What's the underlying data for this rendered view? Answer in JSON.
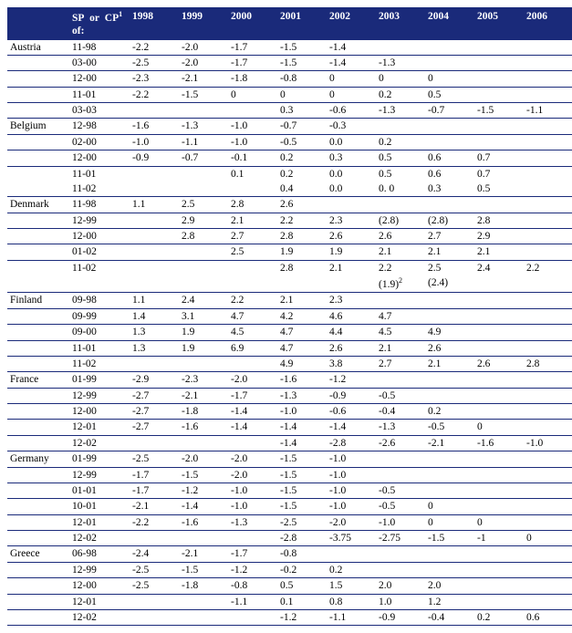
{
  "header": {
    "blank": "",
    "sp_label_pre": "SP  or  CP",
    "sp_sup": "1",
    "sp_label_post": " of:",
    "years": [
      "1998",
      "1999",
      "2000",
      "2001",
      "2002",
      "2003",
      "2004",
      "2005",
      "2006"
    ]
  },
  "rows": [
    {
      "country": "Austria",
      "sp": "11-98",
      "v": [
        "-2.2",
        "-2.0",
        "-1.7",
        "-1.5",
        "-1.4",
        "",
        "",
        "",
        ""
      ]
    },
    {
      "country": "",
      "sp": "03-00",
      "v": [
        "-2.5",
        "-2.0",
        "-1.7",
        "-1.5",
        "-1.4",
        "-1.3",
        "",
        "",
        ""
      ]
    },
    {
      "country": "",
      "sp": "12-00",
      "v": [
        "-2.3",
        "-2.1",
        "-1.8",
        "-0.8",
        "0",
        "0",
        "0",
        "",
        ""
      ]
    },
    {
      "country": "",
      "sp": "11-01",
      "v": [
        "-2.2",
        "-1.5",
        "0",
        "0",
        "0",
        "0.2",
        "0.5",
        "",
        ""
      ]
    },
    {
      "country": "",
      "sp": "03-03",
      "v": [
        "",
        "",
        "",
        "0.3",
        "-0.6",
        "-1.3",
        "-0.7",
        "-1.5",
        "-1.1"
      ]
    },
    {
      "country": "Belgium",
      "sp": "12-98",
      "v": [
        "-1.6",
        "-1.3",
        "-1.0",
        "-0.7",
        "-0.3",
        "",
        "",
        "",
        ""
      ]
    },
    {
      "country": "",
      "sp": "02-00",
      "v": [
        "-1.0",
        "-1.1",
        "-1.0",
        "-0.5",
        "0.0",
        "0.2",
        "",
        "",
        ""
      ]
    },
    {
      "country": "",
      "sp": "12-00",
      "v": [
        "-0.9",
        "-0.7",
        "-0.1",
        "0.2",
        "0.3",
        "0.5",
        "0.6",
        "0.7",
        ""
      ]
    },
    {
      "split": true,
      "top": {
        "country": "",
        "sp": "11-01",
        "v": [
          "",
          "",
          "0.1",
          "0.2",
          "0.0",
          "0.5",
          "0.6",
          "0.7",
          ""
        ]
      },
      "bot": {
        "country": "",
        "sp": "11-02",
        "v": [
          "",
          "",
          "",
          "0.4",
          "0.0",
          "0. 0",
          "0.3",
          "0.5",
          ""
        ]
      }
    },
    {
      "country": "Denmark",
      "sp": "11-98",
      "v": [
        "1.1",
        "2.5",
        "2.8",
        "2.6",
        "",
        "",
        "",
        "",
        ""
      ]
    },
    {
      "country": "",
      "sp": "12-99",
      "v": [
        "",
        "2.9",
        "2.1",
        "2.2",
        "2.3",
        "(2.8)",
        "(2.8)",
        "2.8",
        ""
      ]
    },
    {
      "country": "",
      "sp": "12-00",
      "v": [
        "",
        "2.8",
        "2.7",
        "2.8",
        "2.6",
        "2.6",
        "2.7",
        "2.9",
        ""
      ]
    },
    {
      "country": "",
      "sp": "01-02",
      "v": [
        "",
        "",
        "2.5",
        "1.9",
        "1.9",
        "2.1",
        "2.1",
        "2.1",
        ""
      ]
    },
    {
      "split": true,
      "top": {
        "country": "",
        "sp": "11-02",
        "v": [
          "",
          "",
          "",
          "2.8",
          "2.1",
          "2.2",
          "2.5",
          "2.4",
          "2.2"
        ]
      },
      "bot": {
        "country": "",
        "sp": "",
        "v": [
          "",
          "",
          "",
          "",
          "",
          "(1.9)",
          "(2.4)",
          "",
          ""
        ],
        "sup": {
          "5": "2"
        }
      }
    },
    {
      "country": "Finland",
      "sp": "09-98",
      "v": [
        "1.1",
        "2.4",
        "2.2",
        "2.1",
        "2.3",
        "",
        "",
        "",
        ""
      ]
    },
    {
      "country": "",
      "sp": "09-99",
      "v": [
        "1.4",
        "3.1",
        "4.7",
        "4.2",
        "4.6",
        "4.7",
        "",
        "",
        ""
      ]
    },
    {
      "country": "",
      "sp": "09-00",
      "v": [
        "1.3",
        "1.9",
        "4.5",
        "4.7",
        "4.4",
        "4.5",
        "4.9",
        "",
        ""
      ]
    },
    {
      "country": "",
      "sp": "11-01",
      "v": [
        "1.3",
        "1.9",
        "6.9",
        "4.7",
        "2.6",
        "2.1",
        "2.6",
        "",
        ""
      ]
    },
    {
      "country": "",
      "sp": "11-02",
      "v": [
        "",
        "",
        "",
        "4.9",
        "3.8",
        "2.7",
        "2.1",
        "2.6",
        "2.8"
      ]
    },
    {
      "country": "France",
      "sp": "01-99",
      "v": [
        "-2.9",
        "-2.3",
        "-2.0",
        "-1.6",
        "-1.2",
        "",
        "",
        "",
        ""
      ]
    },
    {
      "country": "",
      "sp": "12-99",
      "v": [
        "-2.7",
        "-2.1",
        "-1.7",
        "-1.3",
        "-0.9",
        "-0.5",
        "",
        "",
        ""
      ]
    },
    {
      "country": "",
      "sp": "12-00",
      "v": [
        "-2.7",
        "-1.8",
        "-1.4",
        "-1.0",
        "-0.6",
        "-0.4",
        "0.2",
        "",
        ""
      ]
    },
    {
      "country": "",
      "sp": "12-01",
      "v": [
        "-2.7",
        "-1.6",
        "-1.4",
        "-1.4",
        "-1.4",
        "-1.3",
        "-0.5",
        "0",
        ""
      ]
    },
    {
      "country": "",
      "sp": "12-02",
      "v": [
        "",
        "",
        "",
        "-1.4",
        "-2.8",
        "-2.6",
        "-2.1",
        "-1.6",
        "-1.0"
      ]
    },
    {
      "country": "Germany",
      "sp": "01-99",
      "v": [
        "-2.5",
        "-2.0",
        "-2.0",
        "-1.5",
        "-1.0",
        "",
        "",
        "",
        ""
      ]
    },
    {
      "country": "",
      "sp": "12-99",
      "v": [
        "-1.7",
        "-1.5",
        "-2.0",
        "-1.5",
        "-1.0",
        "",
        "",
        "",
        ""
      ]
    },
    {
      "country": "",
      "sp": "01-01",
      "v": [
        "-1.7",
        "-1.2",
        "-1.0",
        "-1.5",
        "-1.0",
        "-0.5",
        "",
        "",
        ""
      ]
    },
    {
      "country": "",
      "sp": "10-01",
      "v": [
        "-2.1",
        "-1.4",
        "-1.0",
        "-1.5",
        "-1.0",
        "-0.5",
        "0",
        "",
        ""
      ]
    },
    {
      "country": "",
      "sp": "12-01",
      "v": [
        "-2.2",
        "-1.6",
        "-1.3",
        "-2.5",
        "-2.0",
        "-1.0",
        "0",
        "0",
        ""
      ]
    },
    {
      "country": "",
      "sp": "12-02",
      "v": [
        "",
        "",
        "",
        "-2.8",
        "-3.75",
        "-2.75",
        "-1.5",
        "-1",
        "0"
      ]
    },
    {
      "country": "Greece",
      "sp": "06-98",
      "v": [
        "-2.4",
        "-2.1",
        "-1.7",
        "-0.8",
        "",
        "",
        "",
        "",
        ""
      ]
    },
    {
      "country": "",
      "sp": "12-99",
      "v": [
        "-2.5",
        "-1.5",
        "-1.2",
        "-0.2",
        "0.2",
        "",
        "",
        "",
        ""
      ]
    },
    {
      "country": "",
      "sp": "12-00",
      "v": [
        "-2.5",
        "-1.8",
        "-0.8",
        "0.5",
        "1.5",
        "2.0",
        "2.0",
        "",
        ""
      ]
    },
    {
      "country": "",
      "sp": "12-01",
      "v": [
        "",
        "",
        "-1.1",
        "0.1",
        "0.8",
        "1.0",
        "1.2",
        "",
        ""
      ]
    },
    {
      "country": "",
      "sp": "12-02",
      "v": [
        "",
        "",
        "",
        "-1.2",
        "-1.1",
        "-0.9",
        "-0.4",
        "0.2",
        "0.6"
      ]
    }
  ]
}
